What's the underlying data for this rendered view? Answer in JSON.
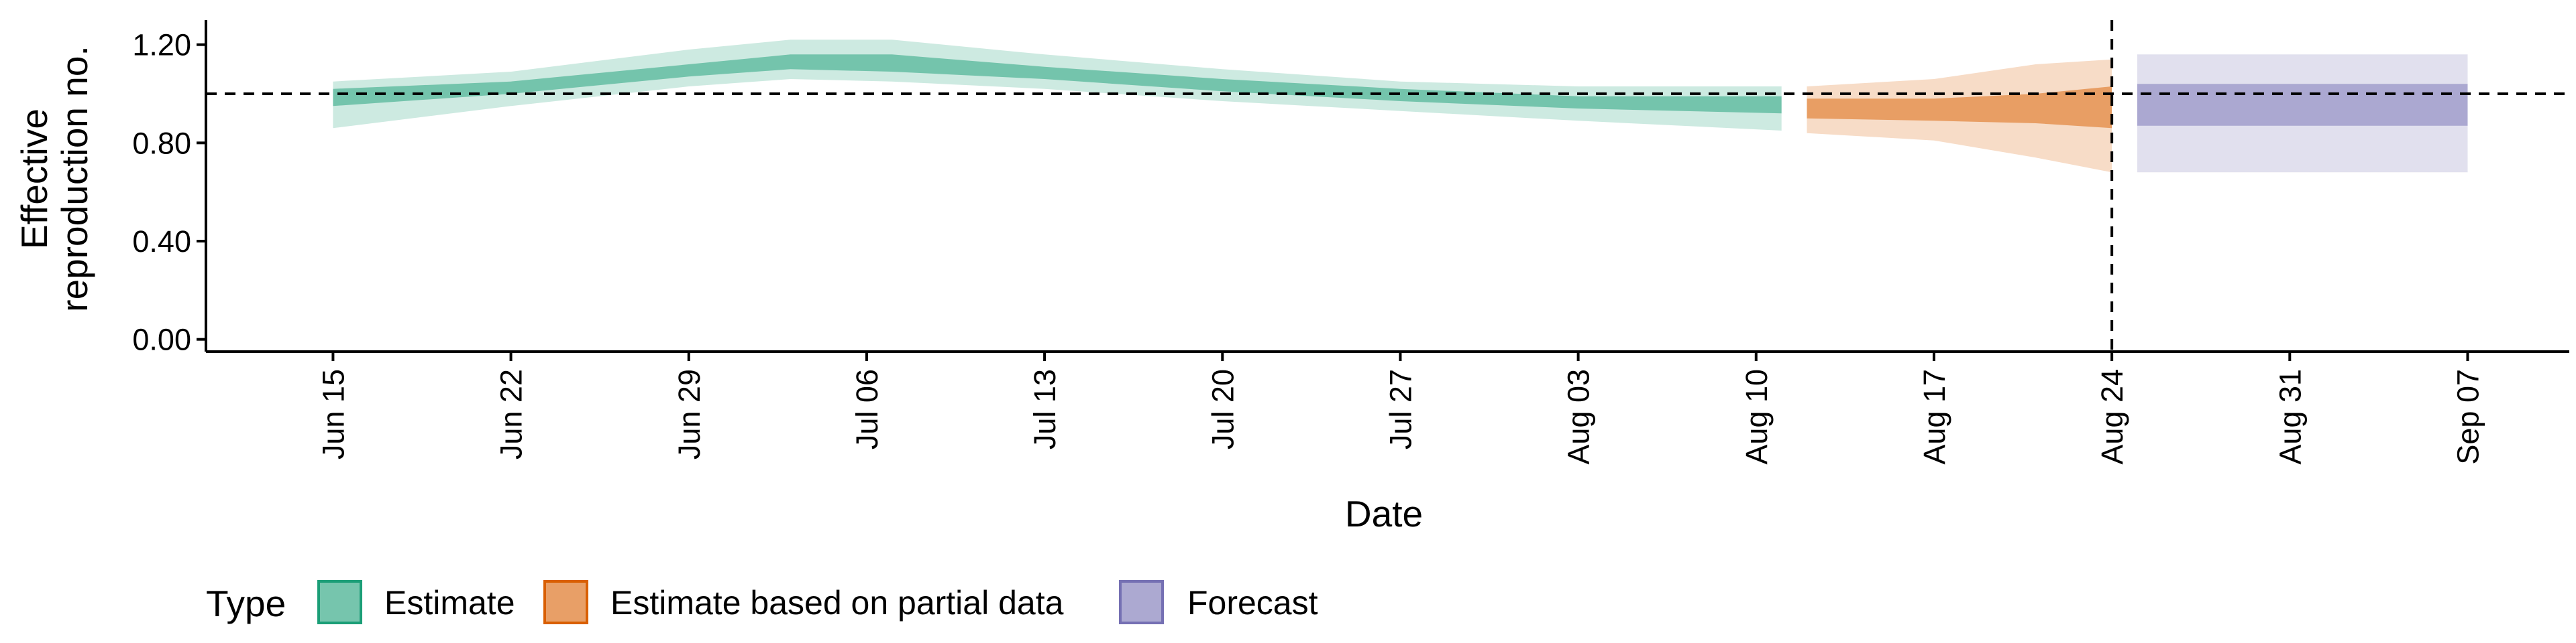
{
  "chart_data": {
    "type": "area",
    "title": "",
    "xlabel": "Date",
    "ylabel_lines": [
      "Effective",
      "reproduction no."
    ],
    "x_ticks": [
      "2020-06-15",
      "2020-06-22",
      "2020-06-29",
      "2020-07-06",
      "2020-07-13",
      "2020-07-20",
      "2020-07-27",
      "2020-08-03",
      "2020-08-10",
      "2020-08-17",
      "2020-08-24",
      "2020-08-31",
      "2020-09-07"
    ],
    "x_tick_labels": [
      "Jun 15",
      "Jun 22",
      "Jun 29",
      "Jul 06",
      "Jul 13",
      "Jul 20",
      "Jul 27",
      "Aug 03",
      "Aug 10",
      "Aug 17",
      "Aug 24",
      "Aug 31",
      "Sep 07"
    ],
    "y_ticks": [
      0,
      0.4,
      0.8,
      1.2
    ],
    "y_tick_labels": [
      "0.00",
      "0.40",
      "0.80",
      "1.20"
    ],
    "ylim": [
      -0.05,
      1.3
    ],
    "xlim": [
      "2020-06-10",
      "2020-09-11"
    ],
    "reference_hline": 1.0,
    "reference_vline": "2020-08-24",
    "grid": false,
    "legend": {
      "title": "Type",
      "position": "bottom",
      "entries": [
        {
          "label": "Estimate",
          "color": "#1b9e77"
        },
        {
          "label": "Estimate based on partial data",
          "color": "#d95f02"
        },
        {
          "label": "Forecast",
          "color": "#7570b3"
        }
      ]
    },
    "series": [
      {
        "name": "Estimate",
        "color": "#1b9e77",
        "points": [
          {
            "date": "2020-06-15",
            "lower_90": 0.86,
            "lower_50": 0.95,
            "upper_50": 1.02,
            "upper_90": 1.05
          },
          {
            "date": "2020-06-22",
            "lower_90": 0.95,
            "lower_50": 1.0,
            "upper_50": 1.05,
            "upper_90": 1.09
          },
          {
            "date": "2020-06-29",
            "lower_90": 1.03,
            "lower_50": 1.07,
            "upper_50": 1.12,
            "upper_90": 1.18
          },
          {
            "date": "2020-07-03",
            "lower_90": 1.06,
            "lower_50": 1.1,
            "upper_50": 1.16,
            "upper_90": 1.22
          },
          {
            "date": "2020-07-07",
            "lower_90": 1.05,
            "lower_50": 1.09,
            "upper_50": 1.16,
            "upper_90": 1.22
          },
          {
            "date": "2020-07-13",
            "lower_90": 1.02,
            "lower_50": 1.06,
            "upper_50": 1.11,
            "upper_90": 1.16
          },
          {
            "date": "2020-07-20",
            "lower_90": 0.97,
            "lower_50": 1.01,
            "upper_50": 1.06,
            "upper_90": 1.1
          },
          {
            "date": "2020-07-27",
            "lower_90": 0.93,
            "lower_50": 0.97,
            "upper_50": 1.02,
            "upper_90": 1.05
          },
          {
            "date": "2020-08-03",
            "lower_90": 0.89,
            "lower_50": 0.94,
            "upper_50": 0.99,
            "upper_90": 1.03
          },
          {
            "date": "2020-08-11",
            "lower_90": 0.85,
            "lower_50": 0.92,
            "upper_50": 0.99,
            "upper_90": 1.03
          }
        ]
      },
      {
        "name": "Estimate based on partial data",
        "color": "#d95f02",
        "points": [
          {
            "date": "2020-08-12",
            "lower_90": 0.84,
            "lower_50": 0.9,
            "upper_50": 0.98,
            "upper_90": 1.03
          },
          {
            "date": "2020-08-17",
            "lower_90": 0.81,
            "lower_50": 0.89,
            "upper_50": 0.98,
            "upper_90": 1.06
          },
          {
            "date": "2020-08-21",
            "lower_90": 0.74,
            "lower_50": 0.88,
            "upper_50": 1.0,
            "upper_90": 1.12
          },
          {
            "date": "2020-08-24",
            "lower_90": 0.68,
            "lower_50": 0.86,
            "upper_50": 1.03,
            "upper_90": 1.14
          }
        ]
      },
      {
        "name": "Forecast",
        "color": "#7570b3",
        "points": [
          {
            "date": "2020-08-25",
            "lower_90": 0.68,
            "lower_50": 0.87,
            "upper_50": 1.04,
            "upper_90": 1.16
          },
          {
            "date": "2020-09-07",
            "lower_90": 0.68,
            "lower_50": 0.87,
            "upper_50": 1.04,
            "upper_90": 1.16
          }
        ]
      }
    ]
  }
}
